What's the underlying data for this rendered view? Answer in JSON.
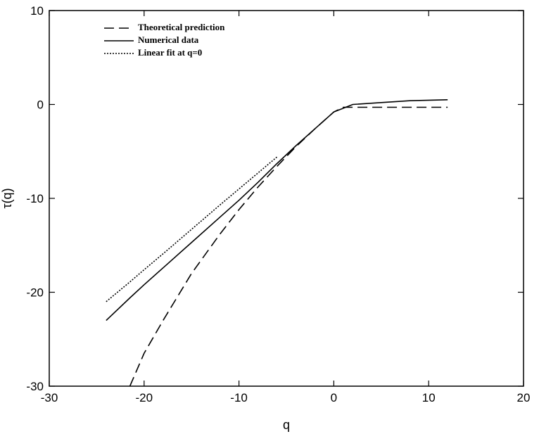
{
  "chart_data": {
    "type": "line",
    "x_label": "q",
    "y_label": "τ(q)",
    "x": [
      -24,
      -21.5,
      -20,
      -18,
      -15,
      -12,
      -10,
      -8,
      -6,
      -4,
      -2,
      0,
      1,
      2,
      5,
      8,
      12
    ],
    "series": [
      {
        "name": "Theoretical prediction",
        "color": "#000000",
        "style": "dashed",
        "values": [
          null,
          -30,
          -26.5,
          -23,
          -18,
          -13.8,
          -11.2,
          -8.8,
          -6.6,
          -4.5,
          -2.6,
          -0.8,
          -0.3,
          -0.3,
          -0.3,
          -0.3,
          -0.3
        ]
      },
      {
        "name": "Numerical data",
        "color": "#000000",
        "style": "solid",
        "values": [
          -23,
          -20.6,
          -19.2,
          -17.4,
          -14.7,
          -12,
          -10.2,
          -8.3,
          -6.3,
          -4.4,
          -2.6,
          -0.8,
          -0.4,
          0,
          0.2,
          0.4,
          0.5
        ]
      },
      {
        "name": "Linear fit at q=0",
        "color": "#000000",
        "style": "dotted",
        "values": [
          -21,
          -18.9,
          -17.6,
          -15.9,
          -13.3,
          -10.7,
          -9,
          -7.3,
          -5.6,
          null,
          null,
          null,
          null,
          null,
          null,
          null,
          null
        ]
      }
    ],
    "xlim": [
      -30,
      20
    ],
    "xticks": [
      -30,
      -20,
      -10,
      0,
      10,
      20
    ],
    "ylim": [
      -30,
      10
    ],
    "yticks": [
      -30,
      -20,
      -10,
      0,
      10
    ],
    "legend": "upper-left"
  }
}
